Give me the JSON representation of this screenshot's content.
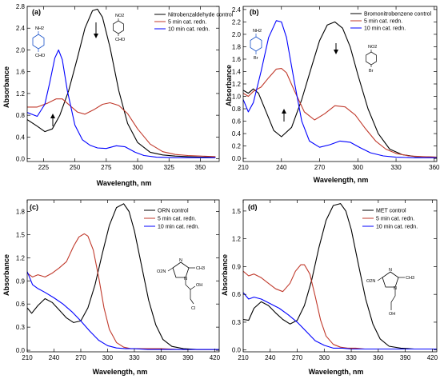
{
  "chart_data": [
    {
      "type": "line",
      "panel_label": "(a)",
      "xlabel": "Wavelength, nm",
      "ylabel": "Absorbance",
      "xlim": [
        212,
        365
      ],
      "ylim": [
        -0.05,
        2.8
      ],
      "xticks": [
        225,
        250,
        275,
        300,
        325,
        350
      ],
      "xtick_labels": [
        "225",
        "250",
        "275",
        "300",
        "325",
        "350"
      ],
      "yticks": [
        0.0,
        0.4,
        0.8,
        1.2,
        1.6,
        2.0,
        2.4,
        2.8
      ],
      "ytick_labels": [
        "0.0",
        "0.4",
        "0.8",
        "1.2",
        "1.6",
        "2.0",
        "2.4",
        "2.8"
      ],
      "legend_position": "top-right",
      "series": [
        {
          "name": "Nitrobenzaldehyde control",
          "color": "#000000",
          "x": [
            212,
            220,
            226,
            232,
            238,
            245,
            252,
            258,
            264,
            268,
            272,
            278,
            285,
            292,
            300,
            310,
            320,
            330,
            340,
            350,
            362
          ],
          "y": [
            0.72,
            0.6,
            0.5,
            0.55,
            0.8,
            1.25,
            1.85,
            2.4,
            2.72,
            2.75,
            2.6,
            2.05,
            1.25,
            0.65,
            0.3,
            0.12,
            0.07,
            0.05,
            0.04,
            0.03,
            0.03
          ]
        },
        {
          "name": "5 min cat. redn.",
          "color": "#c0392b",
          "x": [
            212,
            220,
            228,
            235,
            240,
            246,
            252,
            258,
            265,
            272,
            278,
            285,
            292,
            300,
            310,
            320,
            330,
            340,
            350,
            362
          ],
          "y": [
            0.95,
            0.95,
            1.02,
            1.1,
            1.1,
            0.98,
            0.86,
            0.82,
            0.9,
            1.0,
            1.03,
            0.98,
            0.83,
            0.55,
            0.27,
            0.13,
            0.08,
            0.06,
            0.05,
            0.04
          ]
        },
        {
          "name": "10 min cat. redn.",
          "color": "#0000ff",
          "x": [
            212,
            220,
            226,
            230,
            234,
            237,
            240,
            244,
            250,
            256,
            262,
            268,
            275,
            283,
            290,
            298,
            305,
            315,
            330,
            345,
            362
          ],
          "y": [
            0.85,
            0.78,
            1.0,
            1.4,
            1.85,
            2.0,
            1.82,
            1.25,
            0.62,
            0.35,
            0.25,
            0.2,
            0.19,
            0.24,
            0.22,
            0.12,
            0.06,
            0.03,
            0.02,
            0.02,
            0.02
          ]
        }
      ]
    },
    {
      "type": "line",
      "panel_label": "(b)",
      "xlabel": "Wavelength, nm",
      "ylabel": "Absorbance",
      "xlim": [
        210,
        362
      ],
      "ylim": [
        -0.05,
        2.45
      ],
      "xticks": [
        210,
        240,
        270,
        300,
        330,
        360
      ],
      "xtick_labels": [
        "210",
        "240",
        "270",
        "300",
        "330",
        "360"
      ],
      "yticks": [
        0.0,
        0.2,
        0.4,
        0.6,
        0.8,
        1.0,
        1.2,
        1.4,
        1.6,
        1.8,
        2.0,
        2.2,
        2.4
      ],
      "ytick_labels": [
        "0.0",
        "0.2",
        "0.4",
        "0.6",
        "0.8",
        "1.0",
        "1.2",
        "1.4",
        "1.6",
        "1.8",
        "2.0",
        "2.2",
        "2.4"
      ],
      "legend_position": "top-right",
      "series": [
        {
          "name": "Bromonitrobenzene control",
          "color": "#000000",
          "x": [
            210,
            214,
            218,
            222,
            228,
            234,
            240,
            248,
            256,
            264,
            270,
            276,
            282,
            288,
            294,
            300,
            308,
            316,
            325,
            335,
            345,
            362
          ],
          "y": [
            1.1,
            1.05,
            1.12,
            1.05,
            0.75,
            0.45,
            0.35,
            0.5,
            0.95,
            1.5,
            1.9,
            2.15,
            2.2,
            2.1,
            1.8,
            1.35,
            0.8,
            0.4,
            0.15,
            0.06,
            0.03,
            0.02
          ]
        },
        {
          "name": "5 min cat. redn.",
          "color": "#c0392b",
          "x": [
            210,
            214,
            218,
            224,
            230,
            236,
            240,
            244,
            250,
            258,
            266,
            274,
            282,
            290,
            298,
            306,
            314,
            322,
            330,
            340,
            350,
            362
          ],
          "y": [
            1.05,
            1.0,
            1.08,
            1.15,
            1.3,
            1.44,
            1.45,
            1.38,
            1.1,
            0.75,
            0.62,
            0.72,
            0.85,
            0.83,
            0.7,
            0.48,
            0.28,
            0.15,
            0.08,
            0.04,
            0.03,
            0.02
          ]
        },
        {
          "name": "10 min cat. redn.",
          "color": "#0000ff",
          "x": [
            210,
            214,
            218,
            224,
            230,
            236,
            240,
            244,
            250,
            256,
            262,
            270,
            278,
            286,
            294,
            302,
            310,
            320,
            330,
            345,
            362
          ],
          "y": [
            0.95,
            0.75,
            0.9,
            1.4,
            1.95,
            2.22,
            2.2,
            1.95,
            1.25,
            0.6,
            0.28,
            0.18,
            0.22,
            0.28,
            0.26,
            0.17,
            0.09,
            0.04,
            0.02,
            0.01,
            0.01
          ]
        }
      ]
    },
    {
      "type": "line",
      "panel_label": "(c)",
      "xlabel": "Wavelength, nm",
      "ylabel": "Absorbance",
      "xlim": [
        210,
        425
      ],
      "ylim": [
        -0.02,
        1.95
      ],
      "xticks": [
        210,
        240,
        270,
        300,
        330,
        360,
        390,
        420
      ],
      "xtick_labels": [
        "210",
        "240",
        "270",
        "300",
        "330",
        "360",
        "390",
        "420"
      ],
      "yticks": [
        0.0,
        0.3,
        0.6,
        0.9,
        1.2,
        1.5,
        1.8
      ],
      "ytick_labels": [
        "0.0",
        "0.3",
        "0.6",
        "0.9",
        "1.2",
        "1.5",
        "1.8"
      ],
      "legend_position": "top-right",
      "series": [
        {
          "name": "ORN control",
          "color": "#000000",
          "x": [
            210,
            215,
            222,
            230,
            238,
            246,
            254,
            262,
            270,
            278,
            286,
            294,
            302,
            310,
            318,
            324,
            330,
            338,
            346,
            354,
            362,
            372,
            385,
            400,
            425
          ],
          "y": [
            0.55,
            0.48,
            0.58,
            0.67,
            0.62,
            0.52,
            0.42,
            0.36,
            0.38,
            0.55,
            0.85,
            1.25,
            1.62,
            1.85,
            1.9,
            1.8,
            1.55,
            1.1,
            0.65,
            0.33,
            0.14,
            0.05,
            0.02,
            0.01,
            0.01
          ]
        },
        {
          "name": "5 min cat. redn.",
          "color": "#c0392b",
          "x": [
            210,
            216,
            222,
            230,
            238,
            246,
            254,
            262,
            268,
            274,
            278,
            284,
            290,
            296,
            302,
            310,
            318,
            326,
            335,
            345,
            360,
            380,
            425
          ],
          "y": [
            1.0,
            0.95,
            0.98,
            0.95,
            1.0,
            1.07,
            1.15,
            1.35,
            1.47,
            1.51,
            1.48,
            1.3,
            0.95,
            0.55,
            0.27,
            0.1,
            0.04,
            0.02,
            0.02,
            0.02,
            0.02,
            0.01,
            0.01
          ]
        },
        {
          "name": "10 min cat. redn.",
          "color": "#0000ff",
          "x": [
            210,
            216,
            222,
            230,
            240,
            250,
            260,
            270,
            280,
            290,
            300,
            310,
            320,
            330,
            345,
            360,
            380,
            425
          ],
          "y": [
            1.02,
            0.85,
            0.8,
            0.75,
            0.68,
            0.6,
            0.5,
            0.38,
            0.25,
            0.13,
            0.06,
            0.03,
            0.02,
            0.02,
            0.01,
            0.01,
            0.01,
            0.01
          ]
        }
      ]
    },
    {
      "type": "line",
      "panel_label": "(d)",
      "xlabel": "Wavelength, nm",
      "ylabel": "Absorbance",
      "xlim": [
        210,
        425
      ],
      "ylim": [
        -0.02,
        1.62
      ],
      "xticks": [
        210,
        240,
        270,
        300,
        330,
        360,
        390,
        420
      ],
      "xtick_labels": [
        "210",
        "240",
        "270",
        "300",
        "330",
        "360",
        "390",
        "420"
      ],
      "yticks": [
        0.0,
        0.3,
        0.6,
        0.9,
        1.2,
        1.5
      ],
      "ytick_labels": [
        "0.0",
        "0.3",
        "0.6",
        "0.9",
        "1.2",
        "1.5"
      ],
      "legend_position": "top-right",
      "series": [
        {
          "name": "MET control",
          "color": "#000000",
          "x": [
            210,
            216,
            222,
            230,
            238,
            246,
            254,
            262,
            270,
            278,
            286,
            294,
            302,
            310,
            318,
            324,
            330,
            338,
            346,
            354,
            362,
            372,
            385,
            400,
            425
          ],
          "y": [
            0.33,
            0.32,
            0.45,
            0.52,
            0.48,
            0.4,
            0.33,
            0.28,
            0.32,
            0.48,
            0.75,
            1.1,
            1.4,
            1.56,
            1.58,
            1.5,
            1.3,
            0.92,
            0.55,
            0.28,
            0.12,
            0.04,
            0.02,
            0.01,
            0.01
          ]
        },
        {
          "name": "5 min cat. redn.",
          "color": "#c0392b",
          "x": [
            210,
            216,
            222,
            230,
            238,
            246,
            254,
            262,
            268,
            274,
            278,
            284,
            290,
            296,
            302,
            310,
            318,
            326,
            335,
            345,
            360,
            380,
            425
          ],
          "y": [
            0.85,
            0.8,
            0.82,
            0.78,
            0.72,
            0.66,
            0.63,
            0.72,
            0.85,
            0.92,
            0.92,
            0.82,
            0.58,
            0.32,
            0.15,
            0.06,
            0.03,
            0.02,
            0.02,
            0.01,
            0.01,
            0.01,
            0.01
          ]
        },
        {
          "name": "10 min cat. redn.",
          "color": "#0000ff",
          "x": [
            210,
            216,
            222,
            230,
            240,
            250,
            260,
            270,
            280,
            290,
            300,
            310,
            320,
            330,
            345,
            360,
            380,
            425
          ],
          "y": [
            0.62,
            0.55,
            0.57,
            0.55,
            0.5,
            0.45,
            0.38,
            0.3,
            0.2,
            0.1,
            0.05,
            0.02,
            0.02,
            0.01,
            0.01,
            0.01,
            0.01,
            0.01
          ]
        }
      ]
    }
  ],
  "structures": {
    "a1": {
      "top": "NH2",
      "bottom": "CHO"
    },
    "a2": {
      "top": "NO2",
      "bottom": "CHO"
    },
    "b1": {
      "top": "NH2",
      "bottom": "Br"
    },
    "b2": {
      "top": "NO2",
      "bottom": "Br"
    },
    "c": {
      "nitro": "O2N",
      "n1": "N",
      "n3": "N",
      "methyl": "CH3",
      "oh": "OH",
      "cl": "Cl"
    },
    "d": {
      "nitro": "O2N",
      "n1": "N",
      "n3": "N",
      "methyl": "CH3",
      "oh": "OH"
    }
  },
  "colors": {
    "control": "#000000",
    "five_min": "#c0392b",
    "ten_min": "#0000ff",
    "struct_blue": "#1a52c9",
    "struct_dark": "#222222"
  }
}
